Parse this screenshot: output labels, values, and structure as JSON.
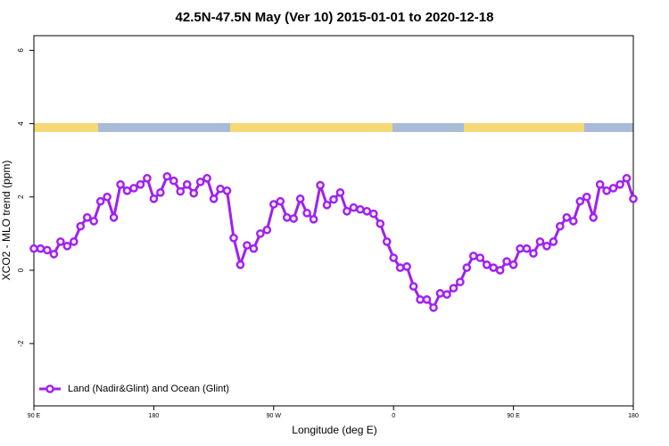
{
  "chart_data": {
    "type": "line",
    "title": "42.5N-47.5N May (Ver 10)   2015-01-01 to 2020-12-18",
    "x_label": "Longitude (deg E)",
    "y_label": "XCO2 - MLO trend (ppm)",
    "x": [
      90,
      95,
      100,
      105,
      110,
      115,
      120,
      125,
      130,
      135,
      140,
      145,
      150,
      155,
      160,
      165,
      170,
      175,
      180,
      185,
      190,
      195,
      200,
      205,
      210,
      215,
      220,
      225,
      230,
      235,
      240,
      245,
      250,
      255,
      260,
      265,
      270,
      275,
      280,
      285,
      290,
      295,
      300,
      305,
      310,
      315,
      320,
      325,
      330,
      335,
      340,
      345,
      350,
      355,
      360,
      365,
      370,
      375,
      380,
      385,
      390,
      395,
      400,
      405,
      410,
      415,
      420,
      425,
      430,
      435,
      440,
      445,
      450,
      455,
      460,
      465,
      470,
      475,
      480,
      485,
      490,
      495,
      500,
      505,
      510,
      515,
      520,
      525,
      530,
      535,
      540
    ],
    "series": [
      {
        "name": "Land (Nadir&Glint) and Ocean (Glint)",
        "color": "#a020f0",
        "values": [
          0.59,
          0.59,
          0.55,
          0.44,
          0.78,
          0.66,
          0.78,
          1.2,
          1.44,
          1.34,
          1.88,
          2.0,
          1.44,
          2.34,
          2.17,
          2.24,
          2.34,
          2.51,
          1.95,
          2.12,
          2.56,
          2.44,
          2.15,
          2.34,
          2.1,
          2.41,
          2.51,
          1.95,
          2.22,
          2.17,
          0.88,
          0.15,
          0.68,
          0.59,
          1.0,
          1.1,
          1.8,
          1.88,
          1.44,
          1.41,
          1.95,
          1.56,
          1.39,
          2.32,
          1.78,
          1.93,
          2.12,
          1.61,
          1.71,
          1.66,
          1.61,
          1.54,
          1.27,
          0.78,
          0.34,
          0.07,
          0.1,
          -0.44,
          -0.8,
          -0.8,
          -1.02,
          -0.63,
          -0.66,
          -0.49,
          -0.32,
          0.07,
          0.39,
          0.34,
          0.15,
          0.07,
          0.0,
          0.24,
          0.15,
          0.59,
          0.59,
          0.46,
          0.78,
          0.66,
          0.78,
          1.2,
          1.44,
          1.34,
          1.88,
          2.0,
          1.44,
          2.34,
          2.17,
          2.24,
          2.34,
          2.51,
          1.95
        ]
      }
    ],
    "xlim": [
      90,
      540
    ],
    "xticks": [
      {
        "value": 90,
        "label": "90 E"
      },
      180,
      {
        "value": 270,
        "label": "90 W"
      },
      {
        "value": 360,
        "label": "0"
      },
      {
        "value": 450,
        "label": "90 E"
      },
      {
        "value": 540,
        "label": "180"
      }
    ],
    "ylim": [
      -3.7,
      6.4
    ],
    "yticks": [
      -2,
      0,
      2,
      4,
      6
    ],
    "legend": "bottom left"
  }
}
